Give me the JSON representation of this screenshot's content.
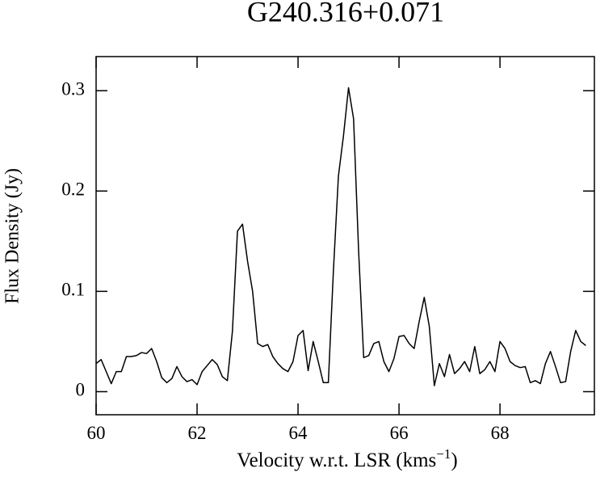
{
  "chart_data": {
    "type": "line",
    "title": "G240.316+0.071",
    "ylabel": "Flux Density (Jy)",
    "xlabel": {
      "text": "Velocity w.r.t. LSR (kms",
      "superscript": "−1",
      "suffix": ")"
    },
    "color": "#000000",
    "x": [
      60.0,
      60.1,
      60.2,
      60.3,
      60.4,
      60.5,
      60.6,
      60.7,
      60.8,
      60.9,
      61.0,
      61.1,
      61.2,
      61.3,
      61.4,
      61.5,
      61.6,
      61.7,
      61.8,
      61.9,
      62.0,
      62.1,
      62.2,
      62.3,
      62.4,
      62.5,
      62.6,
      62.7,
      62.8,
      62.9,
      63.0,
      63.1,
      63.2,
      63.3,
      63.4,
      63.5,
      63.6,
      63.7,
      63.8,
      63.9,
      64.0,
      64.1,
      64.2,
      64.3,
      64.4,
      64.5,
      64.6,
      64.7,
      64.8,
      64.9,
      65.0,
      65.1,
      65.2,
      65.3,
      65.4,
      65.5,
      65.6,
      65.7,
      65.8,
      65.9,
      66.0,
      66.1,
      66.2,
      66.3,
      66.4,
      66.5,
      66.6,
      66.7,
      66.8,
      66.9,
      67.0,
      67.1,
      67.2,
      67.3,
      67.4,
      67.5,
      67.6,
      67.7,
      67.8,
      67.9,
      68.0,
      68.1,
      68.2,
      68.3,
      68.4,
      68.5,
      68.6,
      68.7,
      68.8,
      68.9,
      69.0,
      69.1,
      69.2,
      69.3,
      69.4,
      69.5,
      69.6,
      69.7
    ],
    "values": [
      0.028,
      0.032,
      0.02,
      0.008,
      0.02,
      0.02,
      0.035,
      0.035,
      0.036,
      0.039,
      0.038,
      0.043,
      0.03,
      0.014,
      0.009,
      0.013,
      0.025,
      0.015,
      0.01,
      0.012,
      0.007,
      0.02,
      0.026,
      0.032,
      0.027,
      0.015,
      0.011,
      0.06,
      0.16,
      0.167,
      0.13,
      0.1,
      0.048,
      0.045,
      0.047,
      0.035,
      0.028,
      0.023,
      0.02,
      0.03,
      0.056,
      0.061,
      0.021,
      0.05,
      0.03,
      0.009,
      0.009,
      0.12,
      0.215,
      0.255,
      0.303,
      0.272,
      0.14,
      0.034,
      0.036,
      0.048,
      0.05,
      0.03,
      0.02,
      0.033,
      0.055,
      0.056,
      0.048,
      0.043,
      0.07,
      0.094,
      0.065,
      0.006,
      0.028,
      0.015,
      0.037,
      0.018,
      0.023,
      0.03,
      0.02,
      0.045,
      0.018,
      0.022,
      0.03,
      0.02,
      0.05,
      0.043,
      0.03,
      0.026,
      0.024,
      0.025,
      0.009,
      0.011,
      0.008,
      0.028,
      0.04,
      0.025,
      0.009,
      0.01,
      0.04,
      0.061,
      0.05,
      0.046
    ],
    "xlim": [
      60,
      69.87
    ],
    "xticks": [
      60,
      62,
      64,
      66,
      68
    ],
    "ylim": [
      -0.023,
      0.334
    ],
    "yticks": [
      0,
      0.1,
      0.2,
      0.3
    ]
  }
}
